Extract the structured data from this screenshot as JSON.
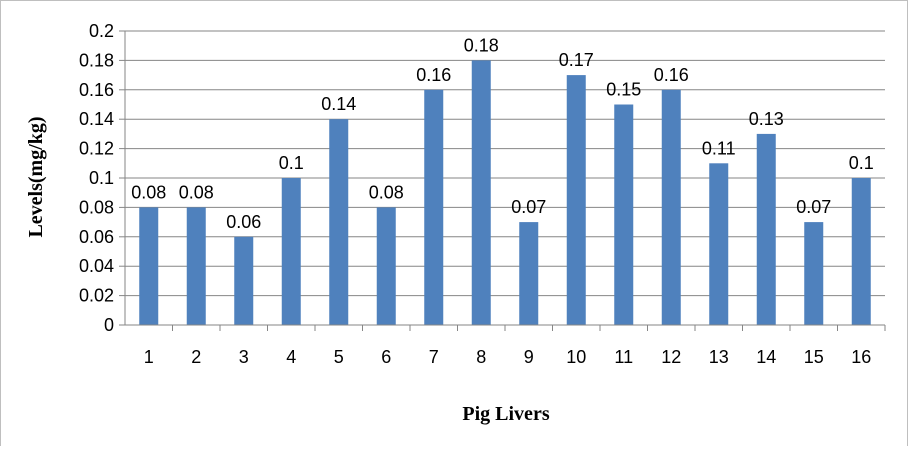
{
  "chart_data": {
    "type": "bar",
    "categories": [
      "1",
      "2",
      "3",
      "4",
      "5",
      "6",
      "7",
      "8",
      "9",
      "10",
      "11",
      "12",
      "13",
      "14",
      "15",
      "16"
    ],
    "values": [
      0.08,
      0.08,
      0.06,
      0.1,
      0.14,
      0.08,
      0.16,
      0.18,
      0.07,
      0.17,
      0.15,
      0.16,
      0.11,
      0.13,
      0.07,
      0.1
    ],
    "data_labels": [
      "0.08",
      "0.08",
      "0.06",
      "0.1",
      "0.14",
      "0.08",
      "0.16",
      "0.18",
      "0.07",
      "0.17",
      "0.15",
      "0.16",
      "0.11",
      "0.13",
      "0.07",
      "0.1"
    ],
    "xlabel": "Pig Livers",
    "ylabel": "Levels(mg/kg)",
    "ylim": [
      0,
      0.2
    ],
    "yticks": [
      "0",
      "0.02",
      "0.04",
      "0.06",
      "0.08",
      "0.1",
      "0.12",
      "0.14",
      "0.16",
      "0.18",
      "0.2"
    ],
    "grid": true,
    "legend": "none",
    "colors": {
      "bar": "#4f81bd",
      "grid": "#868686",
      "axis": "#868686"
    }
  }
}
